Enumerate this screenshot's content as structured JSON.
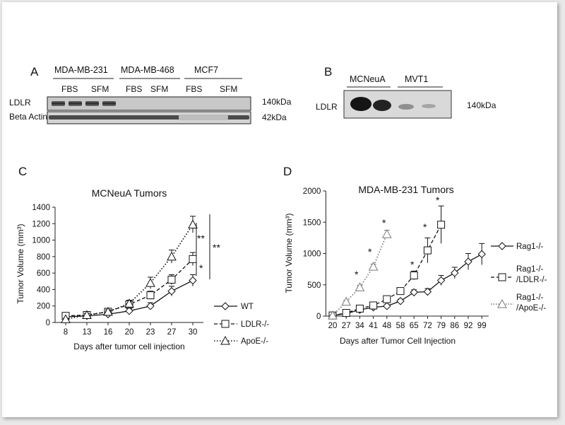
{
  "panel_a": {
    "letter": "A",
    "cell_lines": [
      "MDA-MB-231",
      "MDA-MB-468",
      "MCF7"
    ],
    "conditions": [
      "FBS",
      "SFM",
      "FBS",
      "SFM",
      "FBS",
      "SFM"
    ],
    "rows": [
      "LDLR",
      "Beta Actin"
    ],
    "sizes": [
      "140kDa",
      "42kDa"
    ]
  },
  "panel_b": {
    "letter": "B",
    "cell_lines": [
      "MCNeuA",
      "MVT1"
    ],
    "row": "LDLR",
    "size": "140kDa"
  },
  "chart_data": [
    {
      "panel": "C",
      "type": "line",
      "title": "MCNeuA Tumors",
      "xlabel": "Days after tumor cell injection",
      "ylabel": "Tumor Volume (mm³)",
      "categories": [
        "8",
        "13",
        "16",
        "20",
        "23",
        "27",
        "30"
      ],
      "ylim": [
        0,
        1400
      ],
      "yticks": [
        0,
        200,
        400,
        600,
        800,
        1000,
        1200,
        1400
      ],
      "legend_position": "right",
      "series": [
        {
          "name": "WT",
          "marker": "diamond",
          "dash": "solid",
          "values": [
            70,
            80,
            100,
            140,
            200,
            380,
            510
          ],
          "errors": [
            15,
            15,
            20,
            25,
            40,
            60,
            70
          ]
        },
        {
          "name": "LDLR-/-",
          "marker": "square",
          "dash": "dashed",
          "values": [
            80,
            90,
            130,
            220,
            330,
            520,
            770
          ],
          "errors": [
            15,
            20,
            25,
            30,
            50,
            60,
            80
          ]
        },
        {
          "name": "ApoE-/-",
          "marker": "triangle",
          "dash": "dotted",
          "values": [
            40,
            90,
            130,
            230,
            480,
            800,
            1190
          ],
          "errors": [
            10,
            20,
            25,
            40,
            70,
            80,
            100
          ]
        }
      ],
      "annotations": [
        "**",
        "*",
        "**"
      ]
    },
    {
      "panel": "D",
      "type": "line",
      "title": "MDA-MB-231 Tumors",
      "xlabel": "Days after Tumor Cell Injection",
      "ylabel": "Tumor Volume (mm³)",
      "categories": [
        "20",
        "27",
        "34",
        "41",
        "48",
        "58",
        "65",
        "72",
        "79",
        "86",
        "92",
        "99"
      ],
      "ylim": [
        0,
        2000
      ],
      "yticks": [
        0,
        500,
        1000,
        1500,
        2000
      ],
      "legend_position": "right",
      "series": [
        {
          "name": "Rag1-/-",
          "marker": "diamond",
          "dash": "solid",
          "values": [
            10,
            40,
            100,
            140,
            160,
            240,
            380,
            390,
            570,
            690,
            870,
            990
          ],
          "errors": [
            10,
            10,
            20,
            20,
            20,
            30,
            40,
            50,
            80,
            90,
            130,
            170
          ]
        },
        {
          "name": "Rag1-/- /LDLR-/-",
          "marker": "square",
          "dash": "dashed",
          "values": [
            10,
            50,
            120,
            170,
            270,
            400,
            650,
            1050,
            1460,
            null,
            null,
            null
          ],
          "errors": [
            10,
            10,
            20,
            25,
            30,
            40,
            70,
            200,
            300,
            null,
            null,
            null
          ]
        },
        {
          "name": "Rag1-/- /ApoE-/-",
          "marker": "triangle",
          "dash": "dotted",
          "values": [
            10,
            230,
            460,
            790,
            1310,
            null,
            null,
            null,
            null,
            null,
            null,
            null
          ],
          "errors": [
            10,
            20,
            30,
            40,
            60,
            null,
            null,
            null,
            null,
            null,
            null,
            null
          ]
        }
      ],
      "annotations": [
        "*",
        "*",
        "*",
        "*",
        "*",
        "*",
        "*"
      ]
    }
  ]
}
